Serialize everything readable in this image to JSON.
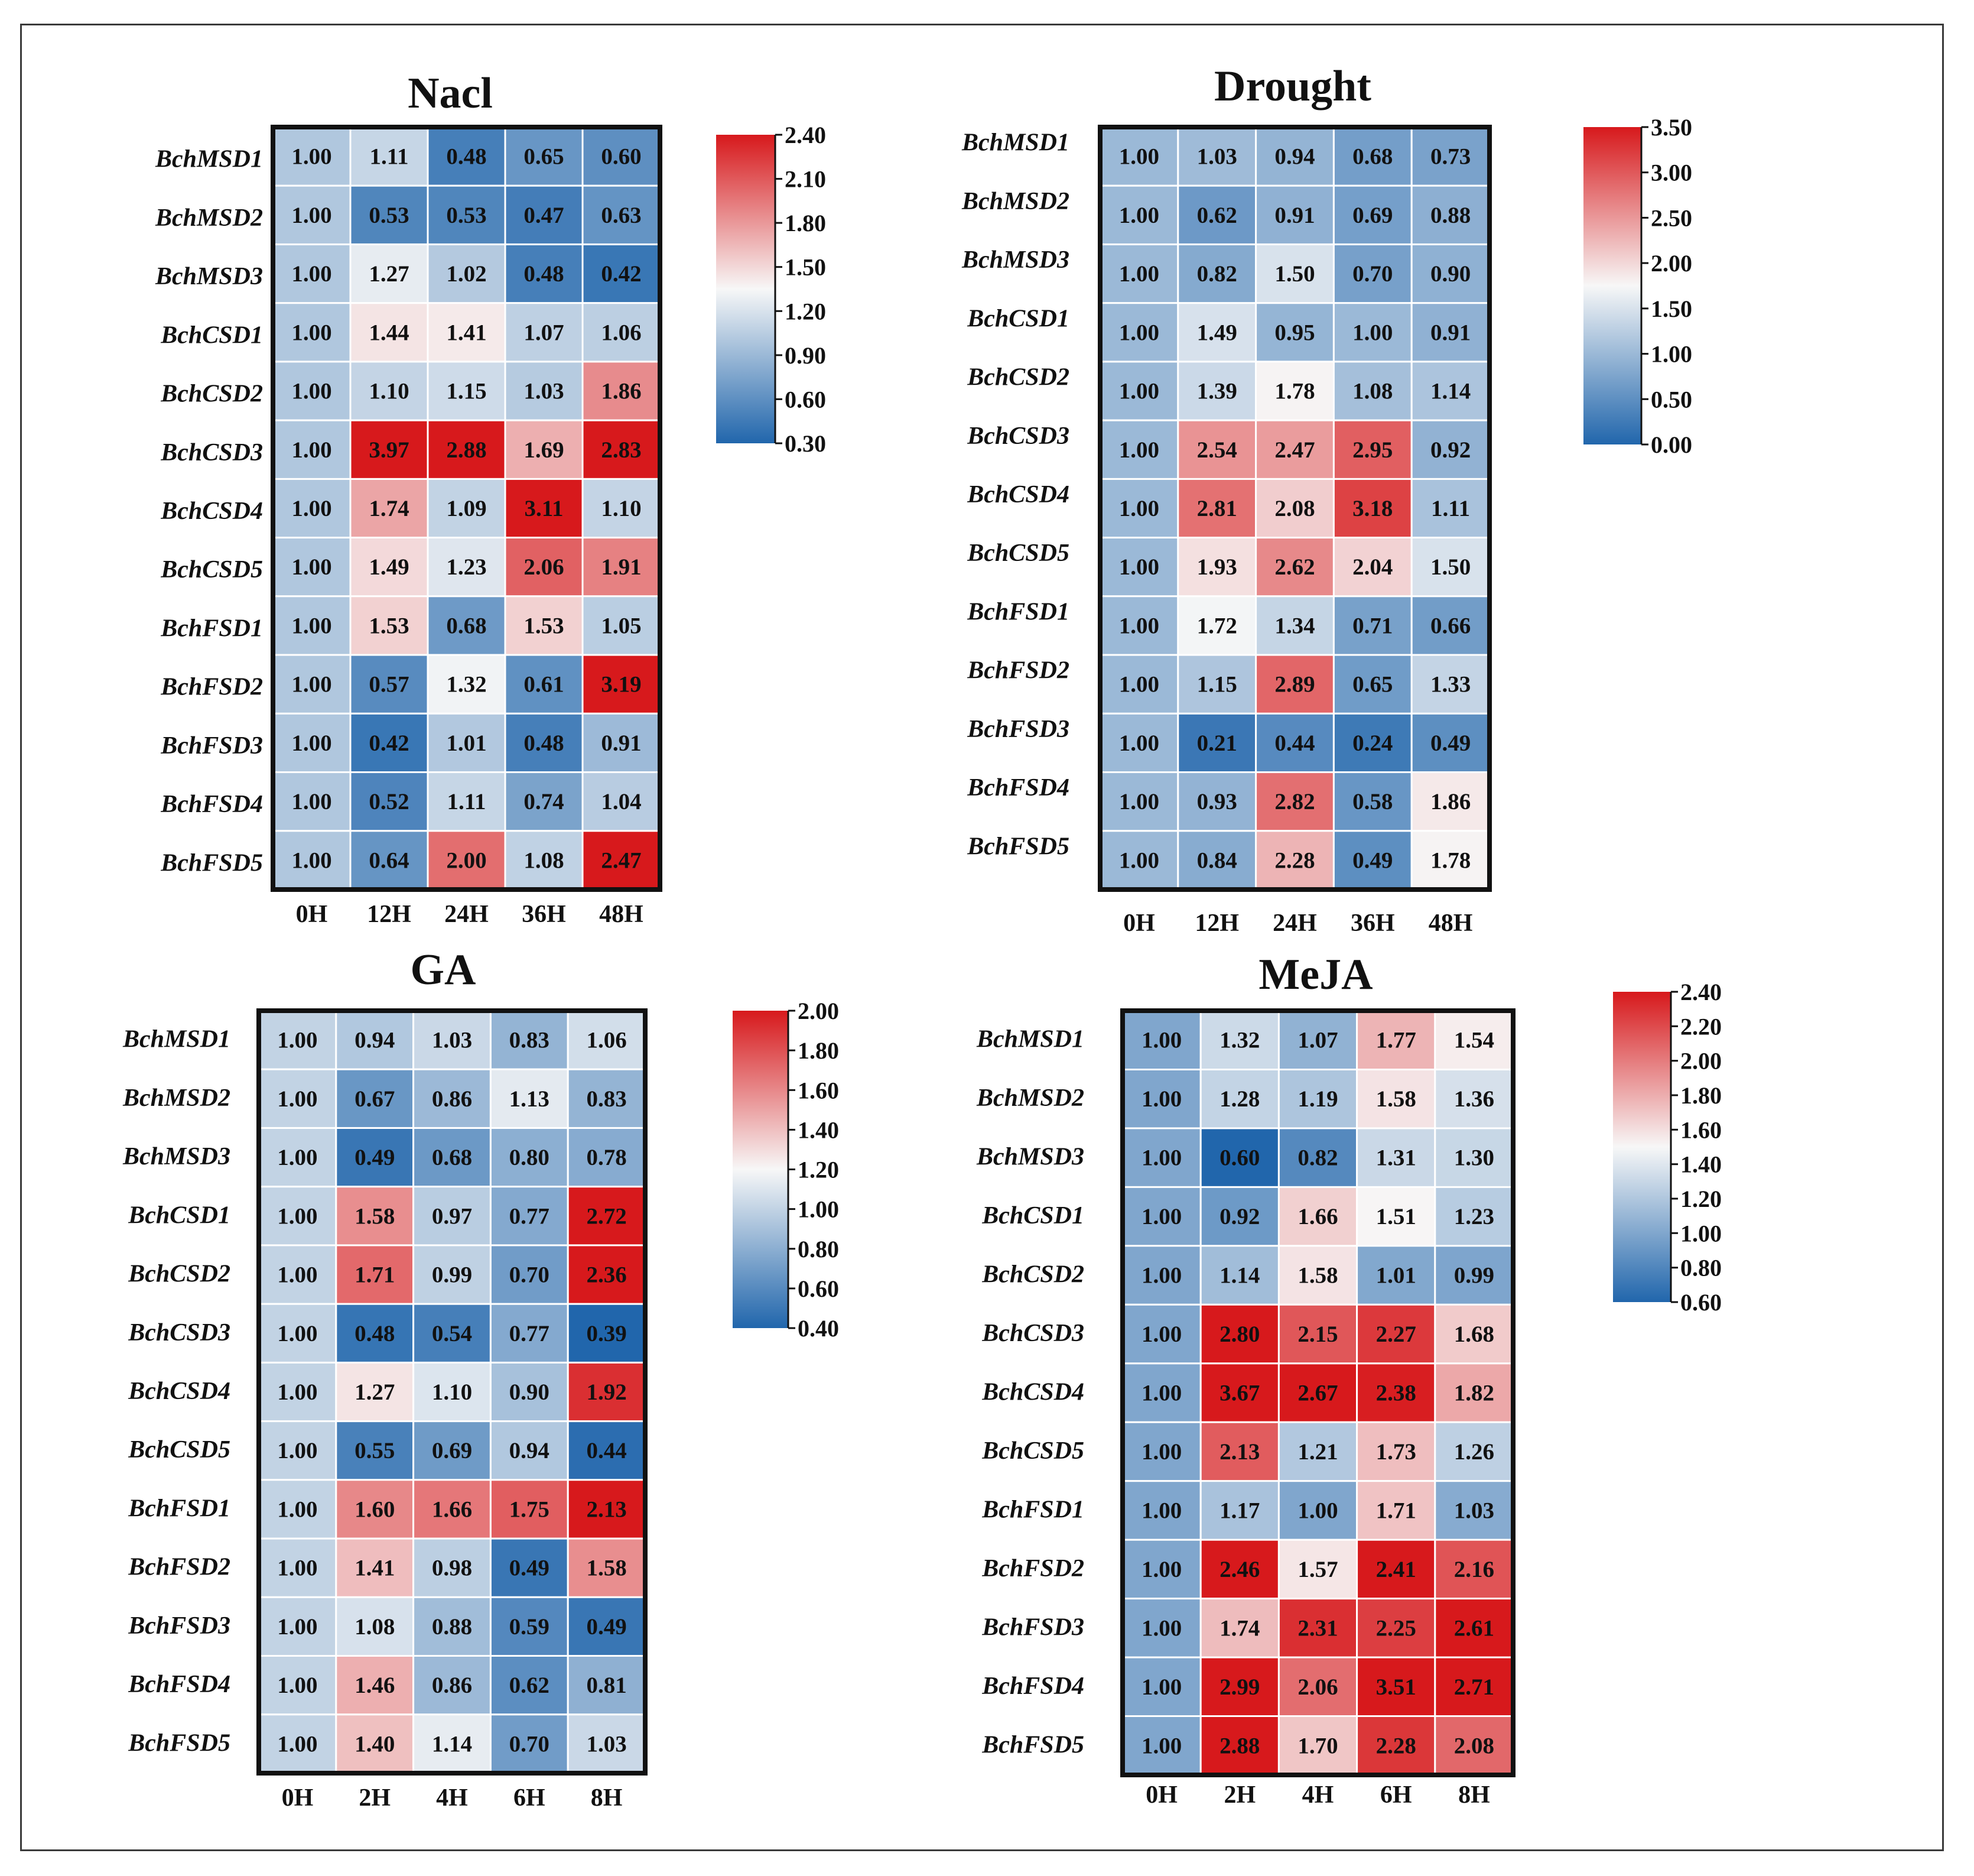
{
  "chart_data": [
    {
      "type": "heatmap",
      "title": "Nacl",
      "rows": [
        "BchMSD1",
        "BchMSD2",
        "BchMSD3",
        "BchCSD1",
        "BchCSD2",
        "BchCSD3",
        "BchCSD4",
        "BchCSD5",
        "BchFSD1",
        "BchFSD2",
        "BchFSD3",
        "BchFSD4",
        "BchFSD5"
      ],
      "columns": [
        "0H",
        "12H",
        "24H",
        "36H",
        "48H"
      ],
      "values": [
        [
          "1.00",
          "1.11",
          "0.48",
          "0.65",
          "0.60"
        ],
        [
          "1.00",
          "0.53",
          "0.53",
          "0.47",
          "0.63"
        ],
        [
          "1.00",
          "1.27",
          "1.02",
          "0.48",
          "0.42"
        ],
        [
          "1.00",
          "1.44",
          "1.41",
          "1.07",
          "1.06"
        ],
        [
          "1.00",
          "1.10",
          "1.15",
          "1.03",
          "1.86"
        ],
        [
          "1.00",
          "3.97",
          "2.88",
          "1.69",
          "2.83"
        ],
        [
          "1.00",
          "1.74",
          "1.09",
          "3.11",
          "1.10"
        ],
        [
          "1.00",
          "1.49",
          "1.23",
          "2.06",
          "1.91"
        ],
        [
          "1.00",
          "1.53",
          "0.68",
          "1.53",
          "1.05"
        ],
        [
          "1.00",
          "0.57",
          "1.32",
          "0.61",
          "3.19"
        ],
        [
          "1.00",
          "0.42",
          "1.01",
          "0.48",
          "0.91"
        ],
        [
          "1.00",
          "0.52",
          "1.11",
          "0.74",
          "1.04"
        ],
        [
          "1.00",
          "0.64",
          "2.00",
          "1.08",
          "2.47"
        ]
      ],
      "colorbar": {
        "min": 0.3,
        "max": 2.4,
        "ticks": [
          "2.40",
          "2.10",
          "1.80",
          "1.50",
          "1.20",
          "0.90",
          "0.60",
          "0.30"
        ]
      },
      "colors": {
        "low": "#2166ac",
        "mid": "#f7f7f7",
        "high": "#d7191c"
      }
    },
    {
      "type": "heatmap",
      "title": "Drought",
      "rows": [
        "BchMSD1",
        "BchMSD2",
        "BchMSD3",
        "BchCSD1",
        "BchCSD2",
        "BchCSD3",
        "BchCSD4",
        "BchCSD5",
        "BchFSD1",
        "BchFSD2",
        "BchFSD3",
        "BchFSD4",
        "BchFSD5"
      ],
      "columns": [
        "0H",
        "12H",
        "24H",
        "36H",
        "48H"
      ],
      "values": [
        [
          "1.00",
          "1.03",
          "0.94",
          "0.68",
          "0.73"
        ],
        [
          "1.00",
          "0.62",
          "0.91",
          "0.69",
          "0.88"
        ],
        [
          "1.00",
          "0.82",
          "1.50",
          "0.70",
          "0.90"
        ],
        [
          "1.00",
          "1.49",
          "0.95",
          "1.00",
          "0.91"
        ],
        [
          "1.00",
          "1.39",
          "1.78",
          "1.08",
          "1.14"
        ],
        [
          "1.00",
          "2.54",
          "2.47",
          "2.95",
          "0.92"
        ],
        [
          "1.00",
          "2.81",
          "2.08",
          "3.18",
          "1.11"
        ],
        [
          "1.00",
          "1.93",
          "2.62",
          "2.04",
          "1.50"
        ],
        [
          "1.00",
          "1.72",
          "1.34",
          "0.71",
          "0.66"
        ],
        [
          "1.00",
          "1.15",
          "2.89",
          "0.65",
          "1.33"
        ],
        [
          "1.00",
          "0.21",
          "0.44",
          "0.24",
          "0.49"
        ],
        [
          "1.00",
          "0.93",
          "2.82",
          "0.58",
          "1.86"
        ],
        [
          "1.00",
          "0.84",
          "2.28",
          "0.49",
          "1.78"
        ]
      ],
      "colorbar": {
        "min": 0.0,
        "max": 3.5,
        "ticks": [
          "3.50",
          "3.00",
          "2.50",
          "2.00",
          "1.50",
          "1.00",
          "0.50",
          "0.00"
        ]
      },
      "colors": {
        "low": "#2166ac",
        "mid": "#f7f7f7",
        "high": "#d7191c"
      }
    },
    {
      "type": "heatmap",
      "title": "GA",
      "rows": [
        "BchMSD1",
        "BchMSD2",
        "BchMSD3",
        "BchCSD1",
        "BchCSD2",
        "BchCSD3",
        "BchCSD4",
        "BchCSD5",
        "BchFSD1",
        "BchFSD2",
        "BchFSD3",
        "BchFSD4",
        "BchFSD5"
      ],
      "columns": [
        "0H",
        "2H",
        "4H",
        "6H",
        "8H"
      ],
      "values": [
        [
          "1.00",
          "0.94",
          "1.03",
          "0.83",
          "1.06"
        ],
        [
          "1.00",
          "0.67",
          "0.86",
          "1.13",
          "0.83"
        ],
        [
          "1.00",
          "0.49",
          "0.68",
          "0.80",
          "0.78"
        ],
        [
          "1.00",
          "1.58",
          "0.97",
          "0.77",
          "2.72"
        ],
        [
          "1.00",
          "1.71",
          "0.99",
          "0.70",
          "2.36"
        ],
        [
          "1.00",
          "0.48",
          "0.54",
          "0.77",
          "0.39"
        ],
        [
          "1.00",
          "1.27",
          "1.10",
          "0.90",
          "1.92"
        ],
        [
          "1.00",
          "0.55",
          "0.69",
          "0.94",
          "0.44"
        ],
        [
          "1.00",
          "1.60",
          "1.66",
          "1.75",
          "2.13"
        ],
        [
          "1.00",
          "1.41",
          "0.98",
          "0.49",
          "1.58"
        ],
        [
          "1.00",
          "1.08",
          "0.88",
          "0.59",
          "0.49"
        ],
        [
          "1.00",
          "1.46",
          "0.86",
          "0.62",
          "0.81"
        ],
        [
          "1.00",
          "1.40",
          "1.14",
          "0.70",
          "1.03"
        ]
      ],
      "colorbar": {
        "min": 0.4,
        "max": 2.0,
        "ticks": [
          "2.00",
          "1.80",
          "1.60",
          "1.40",
          "1.20",
          "1.00",
          "0.80",
          "0.60",
          "0.40"
        ]
      },
      "colors": {
        "low": "#2166ac",
        "mid": "#f7f7f7",
        "high": "#d7191c"
      }
    },
    {
      "type": "heatmap",
      "title": "MeJA",
      "rows": [
        "BchMSD1",
        "BchMSD2",
        "BchMSD3",
        "BchCSD1",
        "BchCSD2",
        "BchCSD3",
        "BchCSD4",
        "BchCSD5",
        "BchFSD1",
        "BchFSD2",
        "BchFSD3",
        "BchFSD4",
        "BchFSD5"
      ],
      "columns": [
        "0H",
        "2H",
        "4H",
        "6H",
        "8H"
      ],
      "values": [
        [
          "1.00",
          "1.32",
          "1.07",
          "1.77",
          "1.54"
        ],
        [
          "1.00",
          "1.28",
          "1.19",
          "1.58",
          "1.36"
        ],
        [
          "1.00",
          "0.60",
          "0.82",
          "1.31",
          "1.30"
        ],
        [
          "1.00",
          "0.92",
          "1.66",
          "1.51",
          "1.23"
        ],
        [
          "1.00",
          "1.14",
          "1.58",
          "1.01",
          "0.99"
        ],
        [
          "1.00",
          "2.80",
          "2.15",
          "2.27",
          "1.68"
        ],
        [
          "1.00",
          "3.67",
          "2.67",
          "2.38",
          "1.82"
        ],
        [
          "1.00",
          "2.13",
          "1.21",
          "1.73",
          "1.26"
        ],
        [
          "1.00",
          "1.17",
          "1.00",
          "1.71",
          "1.03"
        ],
        [
          "1.00",
          "2.46",
          "1.57",
          "2.41",
          "2.16"
        ],
        [
          "1.00",
          "1.74",
          "2.31",
          "2.25",
          "2.61"
        ],
        [
          "1.00",
          "2.99",
          "2.06",
          "3.51",
          "2.71"
        ],
        [
          "1.00",
          "2.88",
          "1.70",
          "2.28",
          "2.08"
        ]
      ],
      "colorbar": {
        "min": 0.6,
        "max": 2.4,
        "ticks": [
          "2.40",
          "2.20",
          "2.00",
          "1.80",
          "1.60",
          "1.40",
          "1.20",
          "1.00",
          "0.80",
          "0.60"
        ]
      },
      "colors": {
        "low": "#2166ac",
        "mid": "#f7f7f7",
        "high": "#d7191c"
      }
    }
  ]
}
